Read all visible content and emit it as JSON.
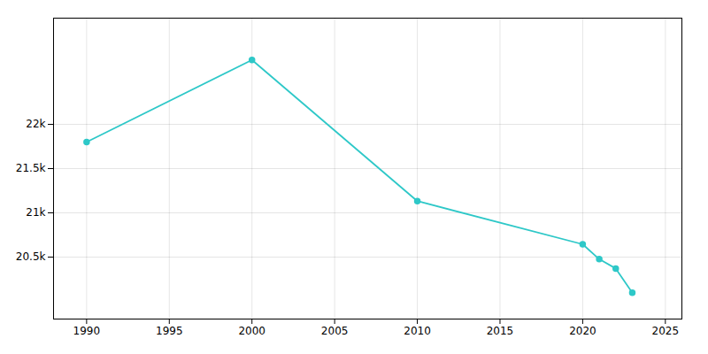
{
  "chart_data": {
    "type": "line",
    "x": [
      1990,
      2000,
      2010,
      2020,
      2021,
      2022,
      2023
    ],
    "values": [
      21800,
      22728,
      21133,
      20645,
      20477,
      20371,
      20097
    ],
    "color": "#2ec8c8",
    "marker": "circle",
    "xlim": [
      1988,
      2026
    ],
    "ylim": [
      19800,
      23200
    ],
    "xticks": [
      1990,
      1995,
      2000,
      2005,
      2010,
      2015,
      2020,
      2025
    ],
    "yticks": [
      {
        "value": 20500,
        "label": "20.5k"
      },
      {
        "value": 21000,
        "label": "21k"
      },
      {
        "value": 21500,
        "label": "21.5k"
      },
      {
        "value": 22000,
        "label": "22k"
      }
    ],
    "grid": true
  }
}
